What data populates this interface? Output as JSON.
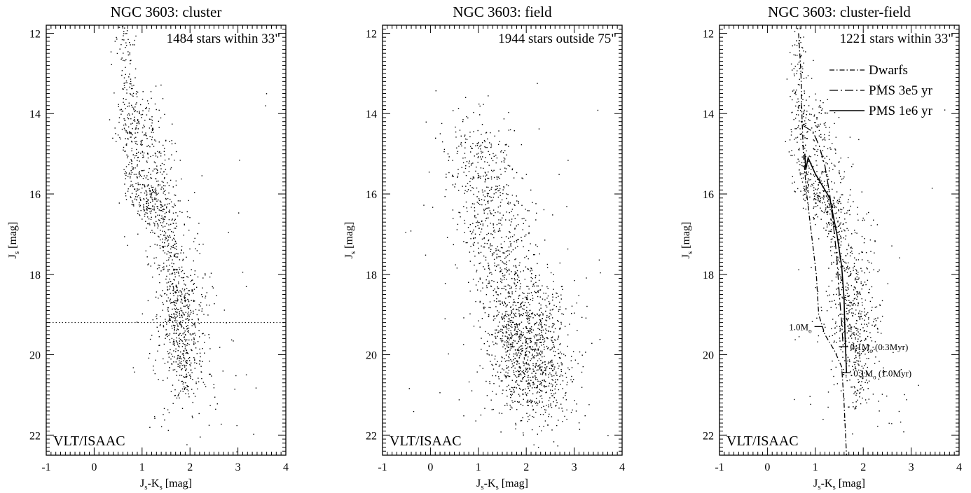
{
  "chart_data": [
    {
      "type": "scatter",
      "title": "NGC 3603: cluster",
      "annotation": "1484 stars within 33\"",
      "corner_label": "VLT/ISAAC",
      "xlabel": "J",
      "xlabel_sub1": "s",
      "xlabel_mid": "-K",
      "xlabel_sub2": "s",
      "xlabel_unit": " [mag]",
      "ylabel": "J",
      "ylabel_sub": "s",
      "ylabel_unit": " [mag]",
      "xlim": [
        -1,
        4
      ],
      "ylim": [
        22.5,
        11.8
      ],
      "xticks": [
        "-1",
        "0",
        "1",
        "2",
        "3",
        "4"
      ],
      "yticks": [
        "12",
        "14",
        "16",
        "18",
        "20",
        "22"
      ],
      "ytick_values": [
        12,
        14,
        16,
        18,
        20,
        22
      ],
      "star_count": 1484,
      "distribution": [
        {
          "kind": "ridge",
          "count": 620,
          "points": [
            [
              0.62,
              11.9
            ],
            [
              0.7,
              13.5
            ],
            [
              0.72,
              15.0
            ],
            [
              0.85,
              16.0
            ],
            [
              1.2,
              16.2
            ],
            [
              1.45,
              16.8
            ],
            [
              1.6,
              17.8
            ],
            [
              1.75,
              19.0
            ],
            [
              1.85,
              20.0
            ],
            [
              1.9,
              21.0
            ]
          ],
          "spread": [
            0.12,
            0.25
          ]
        },
        {
          "kind": "ridge",
          "count": 330,
          "points": [
            [
              0.9,
              13.8
            ],
            [
              1.1,
              14.8
            ],
            [
              1.3,
              15.8
            ],
            [
              1.5,
              16.8
            ]
          ],
          "spread": [
            0.25,
            0.3
          ]
        },
        {
          "kind": "blob",
          "count": 450,
          "center": [
            1.8,
            18.9
          ],
          "sd": [
            0.3,
            1.0
          ]
        },
        {
          "kind": "blob",
          "count": 60,
          "center": [
            2.1,
            20.8
          ],
          "sd": [
            0.55,
            0.8
          ]
        },
        {
          "kind": "uniform",
          "count": 24,
          "x": [
            0.5,
            3.7
          ],
          "y": [
            13.0,
            22.0
          ]
        }
      ],
      "limit_line": {
        "y": 19.2,
        "style": "dotted"
      }
    },
    {
      "type": "scatter",
      "title": "NGC 3603: field",
      "annotation": "1944 stars outside 75\"",
      "corner_label": "VLT/ISAAC",
      "xlabel": "J",
      "xlabel_sub1": "s",
      "xlabel_mid": "-K",
      "xlabel_sub2": "s",
      "xlabel_unit": " [mag]",
      "ylabel": "J",
      "ylabel_sub": "s",
      "ylabel_unit": " [mag]",
      "xlim": [
        -1,
        4
      ],
      "ylim": [
        22.5,
        11.8
      ],
      "xticks": [
        "-1",
        "0",
        "1",
        "2",
        "3",
        "4"
      ],
      "yticks": [
        "12",
        "14",
        "16",
        "18",
        "20",
        "22"
      ],
      "ytick_values": [
        12,
        14,
        16,
        18,
        20,
        22
      ],
      "star_count": 1944,
      "distribution": [
        {
          "kind": "ridge",
          "count": 1150,
          "points": [
            [
              0.9,
              14.5
            ],
            [
              1.3,
              16.5
            ],
            [
              1.6,
              18.0
            ],
            [
              1.9,
              19.3
            ],
            [
              2.1,
              20.3
            ],
            [
              2.3,
              21.3
            ]
          ],
          "spread": [
            0.4,
            0.45
          ]
        },
        {
          "kind": "blob",
          "count": 620,
          "center": [
            2.0,
            19.7
          ],
          "sd": [
            0.5,
            0.9
          ]
        },
        {
          "kind": "blob",
          "count": 140,
          "center": [
            1.0,
            15.6
          ],
          "sd": [
            0.35,
            1.2
          ]
        },
        {
          "kind": "uniform",
          "count": 34,
          "x": [
            -0.6,
            4.2
          ],
          "y": [
            13.0,
            22.2
          ]
        }
      ]
    },
    {
      "type": "scatter",
      "title": "NGC 3603: cluster-field",
      "annotation": "1221 stars within 33\"",
      "corner_label": "VLT/ISAAC",
      "xlabel": "J",
      "xlabel_sub1": "s",
      "xlabel_mid": "-K",
      "xlabel_sub2": "s",
      "xlabel_unit": " [mag]",
      "ylabel": "J",
      "ylabel_sub": "s",
      "ylabel_unit": " [mag]",
      "xlim": [
        -1,
        4
      ],
      "ylim": [
        22.5,
        11.8
      ],
      "xticks": [
        "-1",
        "0",
        "1",
        "2",
        "3",
        "4"
      ],
      "yticks": [
        "12",
        "14",
        "16",
        "18",
        "20",
        "22"
      ],
      "ytick_values": [
        12,
        14,
        16,
        18,
        20,
        22
      ],
      "star_count": 1221,
      "distribution": [
        {
          "kind": "ridge",
          "count": 480,
          "points": [
            [
              0.62,
              11.9
            ],
            [
              0.7,
              13.5
            ],
            [
              0.72,
              15.0
            ],
            [
              0.85,
              16.0
            ],
            [
              1.2,
              16.2
            ],
            [
              1.45,
              16.8
            ],
            [
              1.6,
              17.8
            ],
            [
              1.75,
              19.0
            ],
            [
              1.85,
              20.0
            ],
            [
              1.9,
              21.0
            ]
          ],
          "spread": [
            0.12,
            0.25
          ]
        },
        {
          "kind": "ridge",
          "count": 280,
          "points": [
            [
              0.9,
              13.8
            ],
            [
              1.1,
              14.8
            ],
            [
              1.3,
              15.8
            ],
            [
              1.5,
              16.8
            ]
          ],
          "spread": [
            0.25,
            0.3
          ]
        },
        {
          "kind": "blob",
          "count": 380,
          "center": [
            1.8,
            18.9
          ],
          "sd": [
            0.3,
            1.0
          ]
        },
        {
          "kind": "blob",
          "count": 60,
          "center": [
            2.1,
            20.8
          ],
          "sd": [
            0.55,
            0.8
          ]
        },
        {
          "kind": "uniform",
          "count": 21,
          "x": [
            0.5,
            3.7
          ],
          "y": [
            13.0,
            22.0
          ]
        }
      ],
      "legend": [
        {
          "label": "Dwarfs",
          "style": "dash-dot"
        },
        {
          "label": "PMS 3e5 yr",
          "style": "long-dash-dot"
        },
        {
          "label": "PMS 1e6 yr",
          "style": "solid"
        }
      ],
      "legend_placement": "top-right",
      "isochrones": [
        {
          "name": "Dwarfs",
          "style": "dash-dot",
          "points": [
            [
              0.65,
              12.0
            ],
            [
              0.7,
              13.0
            ],
            [
              0.72,
              14.0
            ],
            [
              0.75,
              15.0
            ],
            [
              0.82,
              16.0
            ],
            [
              0.92,
              17.0
            ],
            [
              1.02,
              18.0
            ],
            [
              1.07,
              19.0
            ],
            [
              1.2,
              19.5
            ],
            [
              1.4,
              19.9
            ],
            [
              1.55,
              20.3
            ],
            [
              1.6,
              21.2
            ],
            [
              1.65,
              22.5
            ]
          ]
        },
        {
          "name": "PMS 3e5 yr",
          "style": "long-dash-dot",
          "points": [
            [
              0.75,
              14.3
            ],
            [
              0.95,
              14.45
            ],
            [
              1.08,
              14.8
            ],
            [
              1.2,
              15.3
            ],
            [
              1.3,
              16.0
            ],
            [
              1.38,
              16.8
            ],
            [
              1.45,
              17.6
            ],
            [
              1.5,
              18.5
            ],
            [
              1.55,
              19.2
            ],
            [
              1.58,
              19.8
            ]
          ]
        },
        {
          "name": "PMS 1e6 yr",
          "style": "solid",
          "points": [
            [
              0.78,
              15.0
            ],
            [
              0.8,
              15.4
            ],
            [
              0.85,
              15.1
            ],
            [
              1.0,
              15.5
            ],
            [
              1.3,
              16.1
            ],
            [
              1.45,
              17.0
            ],
            [
              1.55,
              17.8
            ],
            [
              1.6,
              18.6
            ],
            [
              1.62,
              19.5
            ],
            [
              1.65,
              20.45
            ]
          ]
        }
      ],
      "mass_marks": [
        {
          "label": "1.0M",
          "sub": "o",
          "x": 1.07,
          "y": 19.3,
          "side": "left",
          "extra": ""
        },
        {
          "label": "0.1M",
          "sub": "o",
          "x": 1.58,
          "y": 19.8,
          "side": "right",
          "extra": " (0.3Myr)"
        },
        {
          "label": "0.1M",
          "sub": "o",
          "x": 1.65,
          "y": 20.45,
          "side": "right",
          "extra": " (1.0Myr)"
        }
      ]
    }
  ]
}
